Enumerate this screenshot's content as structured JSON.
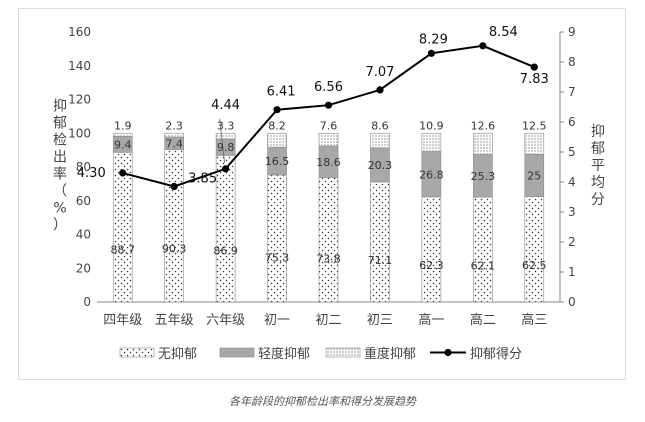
{
  "caption": "各年龄段的抑郁检出率和得分发展趋势",
  "chart_data": {
    "type": "bar",
    "categories": [
      "四年级",
      "五年级",
      "六年级",
      "初一",
      "初二",
      "初三",
      "高一",
      "高二",
      "高三"
    ],
    "series": [
      {
        "name": "无抑郁",
        "kind": "stacked-bar",
        "values": [
          88.7,
          90.3,
          86.9,
          75.3,
          73.8,
          71.1,
          62.3,
          62.1,
          62.5
        ],
        "labels": [
          "88.7",
          "90.3",
          "86.9",
          "75.3",
          "73.8",
          "71.1",
          "62.3",
          "62.1",
          "62.5"
        ]
      },
      {
        "name": "轻度抑郁",
        "kind": "stacked-bar",
        "values": [
          9.4,
          7.4,
          9.8,
          16.5,
          18.6,
          20.3,
          26.8,
          25.3,
          25
        ],
        "labels": [
          "9.4",
          "7.4",
          "9.8",
          "16.5",
          "18.6",
          "20.3",
          "26.8",
          "25.3",
          "25"
        ]
      },
      {
        "name": "重度抑郁",
        "kind": "stacked-bar",
        "values": [
          1.9,
          2.3,
          3.3,
          8.2,
          7.6,
          8.6,
          10.9,
          12.6,
          12.5
        ],
        "labels": [
          "1.9",
          "2.3",
          "3.3",
          "8.2",
          "7.6",
          "8.6",
          "10.9",
          "12.6",
          "12.5"
        ]
      },
      {
        "name": "抑郁得分",
        "kind": "line",
        "axis": "right",
        "values": [
          4.3,
          3.85,
          4.44,
          6.41,
          6.56,
          7.07,
          8.29,
          8.54,
          7.83
        ],
        "labels": [
          "4.30",
          "3.85",
          "4.44",
          "6.41",
          "6.56",
          "7.07",
          "8.29",
          "8.54",
          "7.83"
        ]
      }
    ],
    "ylabel_left": "抑郁检出率（%）",
    "ylabel_right": "抑郁平均分",
    "yticks_left": [
      "0",
      "20",
      "40",
      "60",
      "80",
      "100",
      "120",
      "140",
      "160"
    ],
    "yticks_right": [
      "0",
      "1",
      "2",
      "3",
      "4",
      "5",
      "6",
      "7",
      "8",
      "9"
    ],
    "ylim_left": [
      0,
      160
    ],
    "ylim_right": [
      0,
      9
    ],
    "grid": false,
    "legend_position": "bottom",
    "colors": {
      "none": "#ffffff",
      "mild": "#a8a8a8",
      "severe": "#ffffff",
      "line": "#000000",
      "axis": "#888888",
      "text": "#444444"
    }
  }
}
